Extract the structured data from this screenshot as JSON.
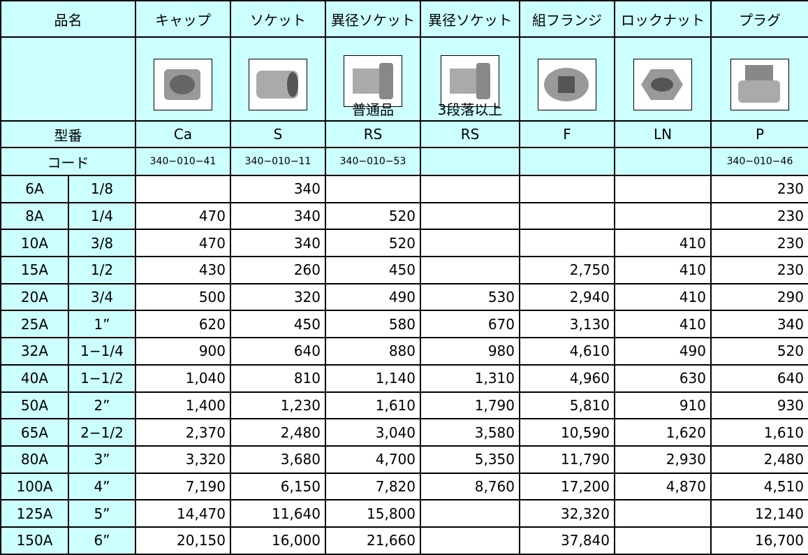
{
  "table": {
    "header": {
      "label": "品名",
      "products": [
        "キャップ",
        "ソケット",
        "異径ソケット",
        "異径ソケット",
        "組フランジ",
        "ロックナット",
        "プラグ"
      ]
    },
    "image_notes": [
      null,
      null,
      "普通品",
      "3段落以上",
      null,
      null,
      null
    ],
    "model_row": {
      "label": "型番",
      "values": [
        "Ca",
        "S",
        "RS",
        "RS",
        "F",
        "LN",
        "P"
      ]
    },
    "code_row": {
      "label": "コード",
      "values": [
        "340−010−41",
        "340−010−11",
        "340−010−53",
        null,
        null,
        null,
        "340−010−46"
      ]
    },
    "rows": [
      {
        "size": "6A",
        "inch": "1/8",
        "prices": [
          null,
          "340",
          null,
          null,
          null,
          null,
          "230"
        ]
      },
      {
        "size": "8A",
        "inch": "1/4",
        "prices": [
          "470",
          "340",
          "520",
          null,
          null,
          null,
          "230"
        ]
      },
      {
        "size": "10A",
        "inch": "3/8",
        "prices": [
          "470",
          "340",
          "520",
          null,
          null,
          "410",
          "230"
        ]
      },
      {
        "size": "15A",
        "inch": "1/2",
        "prices": [
          "430",
          "260",
          "450",
          null,
          "2,750",
          "410",
          "230"
        ]
      },
      {
        "size": "20A",
        "inch": "3/4",
        "prices": [
          "500",
          "320",
          "490",
          "530",
          "2,940",
          "410",
          "290"
        ]
      },
      {
        "size": "25A",
        "inch": "1”",
        "prices": [
          "620",
          "450",
          "580",
          "670",
          "3,130",
          "410",
          "340"
        ]
      },
      {
        "size": "32A",
        "inch": "1−1/4",
        "prices": [
          "900",
          "640",
          "880",
          "980",
          "4,610",
          "490",
          "520"
        ]
      },
      {
        "size": "40A",
        "inch": "1−1/2",
        "prices": [
          "1,040",
          "810",
          "1,140",
          "1,310",
          "4,960",
          "630",
          "640"
        ]
      },
      {
        "size": "50A",
        "inch": "2”",
        "prices": [
          "1,400",
          "1,230",
          "1,610",
          "1,790",
          "5,810",
          "910",
          "930"
        ]
      },
      {
        "size": "65A",
        "inch": "2−1/2",
        "prices": [
          "2,370",
          "2,480",
          "3,040",
          "3,580",
          "10,590",
          "1,620",
          "1,610"
        ]
      },
      {
        "size": "80A",
        "inch": "3”",
        "prices": [
          "3,320",
          "3,680",
          "4,700",
          "5,350",
          "11,790",
          "2,930",
          "2,480"
        ]
      },
      {
        "size": "100A",
        "inch": "4”",
        "prices": [
          "7,190",
          "6,150",
          "7,820",
          "8,760",
          "17,200",
          "4,870",
          "4,510"
        ]
      },
      {
        "size": "125A",
        "inch": "5”",
        "prices": [
          "14,470",
          "11,640",
          "15,800",
          null,
          "32,320",
          null,
          "12,140"
        ]
      },
      {
        "size": "150A",
        "inch": "6”",
        "prices": [
          "20,150",
          "16,000",
          "21,660",
          null,
          "37,840",
          null,
          "16,700"
        ]
      }
    ]
  }
}
